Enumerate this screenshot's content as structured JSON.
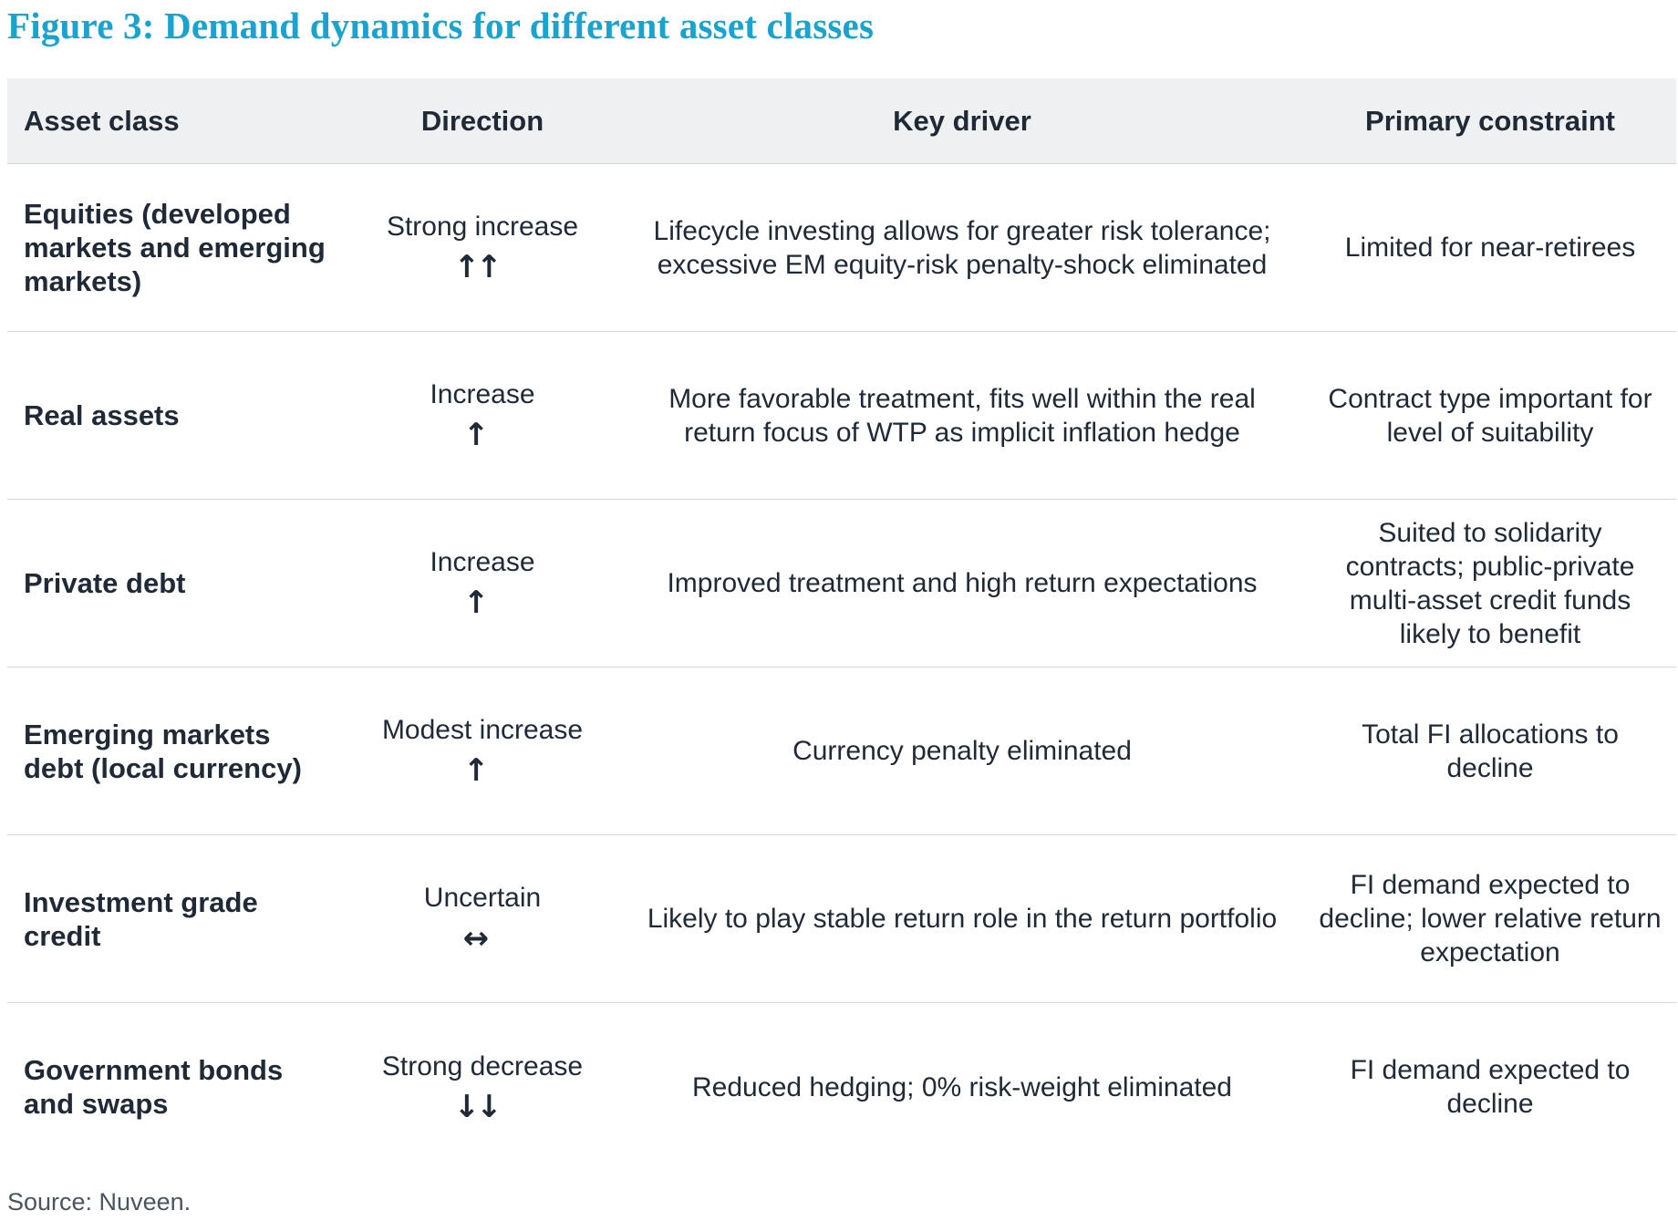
{
  "title": "Figure 3: Demand dynamics for different asset classes",
  "headers": {
    "asset_class": "Asset class",
    "direction": "Direction",
    "key_driver": "Key driver",
    "primary_constraint": "Primary constraint"
  },
  "rows": [
    {
      "asset_class": "Equities (developed markets and emerging markets)",
      "direction": "Strong increase",
      "arrow": "↑↑",
      "arrow_icon": "double-up-arrow-icon",
      "key_driver": "Lifecycle investing allows for greater risk tolerance; excessive EM equity-risk penalty-shock eliminated",
      "primary_constraint": "Limited for near-retirees"
    },
    {
      "asset_class": "Real assets",
      "direction": "Increase",
      "arrow": "↑",
      "arrow_icon": "up-arrow-icon",
      "key_driver": "More favorable treatment, fits well within the real return focus of WTP as implicit inflation hedge",
      "primary_constraint": "Contract type important for level of suitability"
    },
    {
      "asset_class": "Private debt",
      "direction": "Increase",
      "arrow": "↑",
      "arrow_icon": "up-arrow-icon",
      "key_driver": "Improved treatment and high return expectations",
      "primary_constraint": "Suited to solidarity contracts; public-private multi-asset credit funds likely to benefit"
    },
    {
      "asset_class": "Emerging markets debt (local currency)",
      "direction": "Modest increase",
      "arrow": "↑",
      "arrow_icon": "up-arrow-icon",
      "key_driver": "Currency penalty eliminated",
      "primary_constraint": "Total FI allocations to decline"
    },
    {
      "asset_class": "Investment grade credit",
      "direction": "Uncertain",
      "arrow": "↔",
      "arrow_icon": "left-right-arrow-icon",
      "key_driver": "Likely to play stable return role in the return portfolio",
      "primary_constraint": "FI demand expected to decline; lower relative return expectation"
    },
    {
      "asset_class": "Government bonds and swaps",
      "direction": "Strong decrease",
      "arrow": "↓↓",
      "arrow_icon": "double-down-arrow-icon",
      "key_driver": "Reduced hedging; 0% risk-weight eliminated",
      "primary_constraint": "FI demand expected to decline"
    }
  ],
  "source": "Source: Nuveen.",
  "colors": {
    "title": "#1aa3cf",
    "header_bg": "#eef0f2",
    "text": "#1f2a36",
    "divider": "#d4d8dc"
  }
}
